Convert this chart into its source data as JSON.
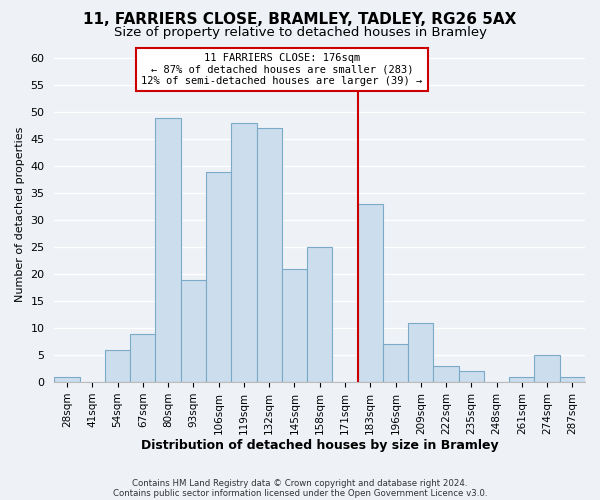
{
  "title": "11, FARRIERS CLOSE, BRAMLEY, TADLEY, RG26 5AX",
  "subtitle": "Size of property relative to detached houses in Bramley",
  "xlabel": "Distribution of detached houses by size in Bramley",
  "ylabel": "Number of detached properties",
  "bin_labels": [
    "28sqm",
    "41sqm",
    "54sqm",
    "67sqm",
    "80sqm",
    "93sqm",
    "106sqm",
    "119sqm",
    "132sqm",
    "145sqm",
    "158sqm",
    "171sqm",
    "183sqm",
    "196sqm",
    "209sqm",
    "222sqm",
    "235sqm",
    "248sqm",
    "261sqm",
    "274sqm",
    "287sqm"
  ],
  "bar_heights": [
    1,
    0,
    6,
    9,
    49,
    19,
    39,
    48,
    47,
    21,
    25,
    0,
    33,
    7,
    11,
    3,
    2,
    0,
    1,
    5,
    1
  ],
  "bar_color": "#ccdded",
  "bar_edge_color": "#7aaac8",
  "vline_x_index": 12,
  "vline_color": "#cc0000",
  "annotation_title": "11 FARRIERS CLOSE: 176sqm",
  "annotation_line1": "← 87% of detached houses are smaller (283)",
  "annotation_line2": "12% of semi-detached houses are larger (39) →",
  "annotation_box_color": "#ffffff",
  "annotation_box_edge": "#cc0000",
  "ylim": [
    0,
    62
  ],
  "footnote1": "Contains HM Land Registry data © Crown copyright and database right 2024.",
  "footnote2": "Contains public sector information licensed under the Open Government Licence v3.0.",
  "title_fontsize": 11,
  "subtitle_fontsize": 9.5,
  "background_color": "#eef2f7",
  "grid_color": "#ffffff",
  "ylabel_fontsize": 8,
  "xlabel_fontsize": 9,
  "tick_fontsize": 7.5
}
